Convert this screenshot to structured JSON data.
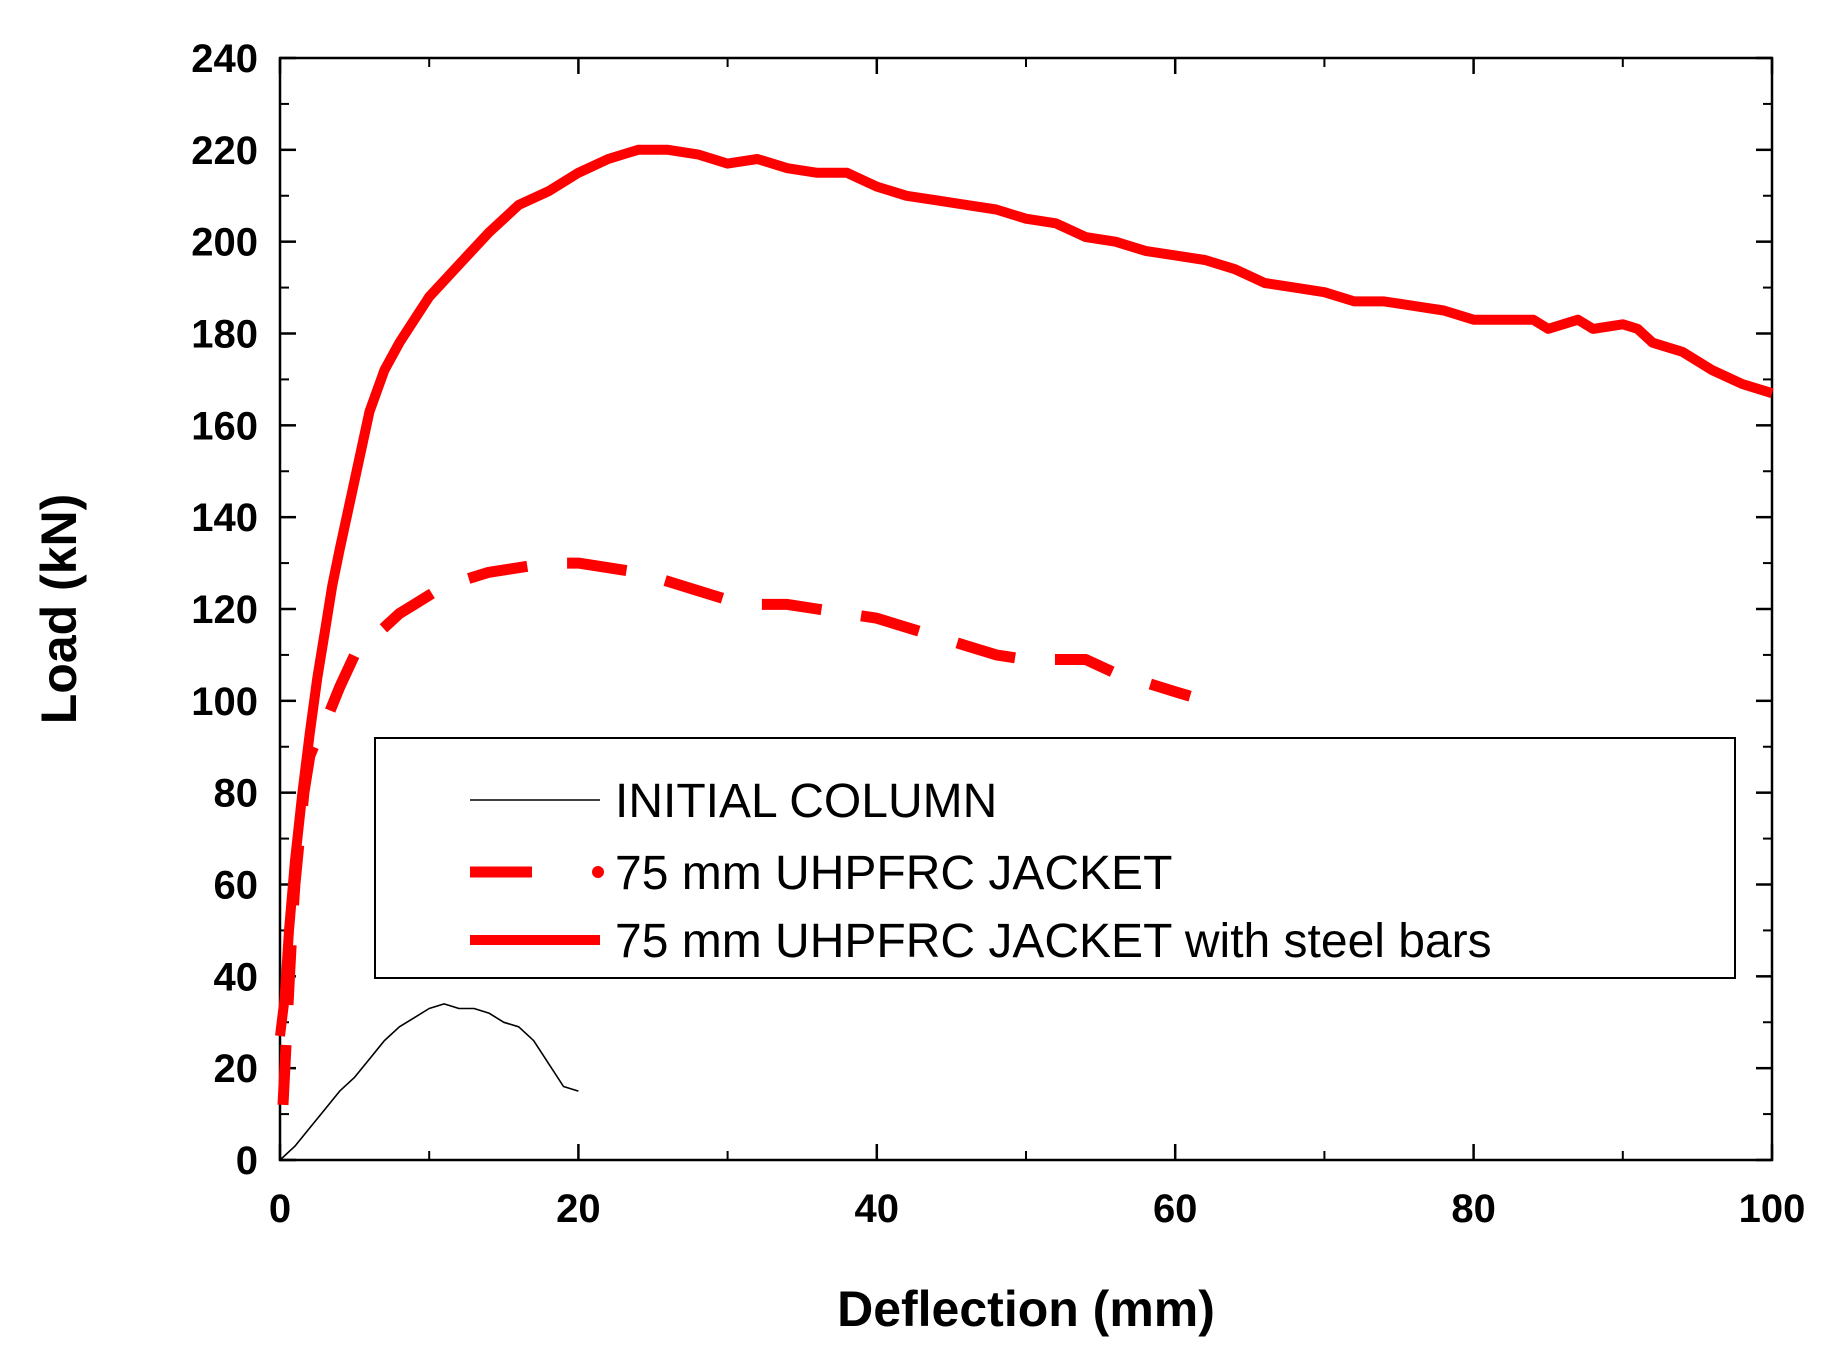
{
  "chart_data": {
    "type": "line",
    "title": "",
    "xlabel": "Deflection (mm)",
    "ylabel": "Load (kN)",
    "xlim": [
      0,
      100
    ],
    "ylim": [
      0,
      240
    ],
    "xticks": [
      0,
      20,
      40,
      60,
      80,
      100
    ],
    "yticks": [
      0,
      20,
      40,
      60,
      80,
      100,
      120,
      140,
      160,
      180,
      200,
      220,
      240
    ],
    "x_minor_step": 10,
    "y_minor_step": 10,
    "grid": false,
    "legend_position": "center-right",
    "series": [
      {
        "name": "INITIAL COLUMN",
        "color": "#000000",
        "style": "thin-solid",
        "x": [
          0,
          1,
          2,
          3,
          4,
          5,
          6,
          7,
          8,
          9,
          10,
          11,
          12,
          13,
          14,
          15,
          16,
          17,
          18,
          19,
          20
        ],
        "y": [
          0,
          3,
          7,
          11,
          15,
          18,
          22,
          26,
          29,
          31,
          33,
          34,
          33,
          33,
          32,
          30,
          29,
          26,
          21,
          16,
          15
        ]
      },
      {
        "name": "75 mm UHPFRC JACKET",
        "color": "#ff0000",
        "style": "dashed",
        "x": [
          0.2,
          0.4,
          0.6,
          0.8,
          1.0,
          1.3,
          1.6,
          2.0,
          2.5,
          3.0,
          4.0,
          5.0,
          6.0,
          7.0,
          8.0,
          9.0,
          10.0,
          11.0,
          12.0,
          14.0,
          16.0,
          18.0,
          20.0,
          22.0,
          24.0,
          26.0,
          28.0,
          30.0,
          32.0,
          34.0,
          36.0,
          38.0,
          40.0,
          42.0,
          44.0,
          46.0,
          48.0,
          50.0,
          52.0,
          54.0,
          56.0,
          58.0,
          60.0,
          61.0
        ],
        "y": [
          12,
          25,
          38,
          50,
          60,
          70,
          80,
          88,
          92,
          95,
          103,
          110,
          113,
          116,
          119,
          121,
          123,
          125,
          126,
          128,
          129,
          130,
          130,
          129,
          128,
          126,
          124,
          122,
          121,
          121,
          120,
          119,
          118,
          116,
          114,
          112,
          110,
          109,
          109,
          109,
          106,
          104,
          102,
          101
        ]
      },
      {
        "name": "75 mm UHPFRC JACKET with steel bars",
        "color": "#ff0000",
        "style": "thick-solid",
        "x": [
          0,
          0.3,
          0.6,
          1.0,
          1.5,
          2.0,
          2.5,
          3.0,
          3.5,
          4.0,
          5.0,
          6.0,
          7.0,
          8.0,
          9.0,
          10.0,
          12.0,
          14.0,
          16.0,
          18.0,
          20.0,
          22.0,
          24.0,
          26.0,
          28.0,
          30.0,
          32.0,
          34.0,
          36.0,
          38.0,
          40.0,
          42.0,
          44.0,
          46.0,
          48.0,
          50.0,
          52.0,
          54.0,
          56.0,
          58.0,
          60.0,
          62.0,
          64.0,
          66.0,
          68.0,
          70.0,
          72.0,
          74.0,
          76.0,
          78.0,
          80.0,
          82.0,
          84.0,
          85.0,
          87.0,
          88.0,
          90.0,
          91.0,
          92.0,
          94.0,
          96.0,
          98.0,
          100.0
        ],
        "y": [
          27,
          35,
          50,
          65,
          80,
          93,
          105,
          115,
          125,
          133,
          148,
          163,
          172,
          178,
          183,
          188,
          195,
          202,
          208,
          211,
          215,
          218,
          220,
          220,
          219,
          217,
          218,
          216,
          215,
          215,
          212,
          210,
          209,
          208,
          207,
          205,
          204,
          201,
          200,
          198,
          197,
          196,
          194,
          191,
          190,
          189,
          187,
          187,
          186,
          185,
          183,
          183,
          183,
          181,
          183,
          181,
          182,
          181,
          178,
          176,
          172,
          169,
          167
        ]
      }
    ]
  }
}
